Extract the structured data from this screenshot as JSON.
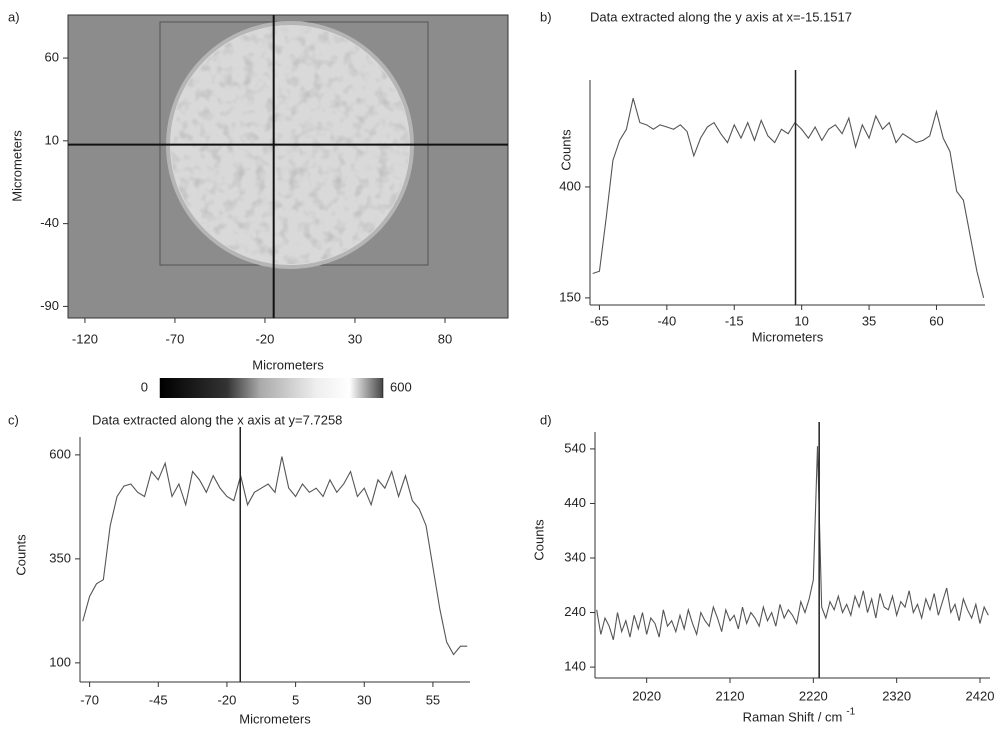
{
  "chart_data": [
    {
      "type": "image",
      "panel_label": "a)",
      "xlabel": "Micrometers",
      "ylabel": "Micrometers",
      "xlim": [
        -129.4,
        115
      ],
      "ylim": [
        -97,
        86
      ],
      "xticks": [
        -120,
        -70,
        -20,
        30,
        80
      ],
      "yticks": [
        60,
        10,
        -40,
        -90
      ],
      "crosshair": {
        "x": -15.1517,
        "y": 7.7258
      },
      "colorbar": {
        "range": [
          0,
          600
        ],
        "ticks": [
          0,
          600
        ]
      }
    },
    {
      "type": "line",
      "panel_label": "b)",
      "title": "Data extracted along the y axis at x=-15.1517",
      "xlabel": "Micrometers",
      "ylabel": "Counts",
      "color": "#555555",
      "xlim": [
        -68.5,
        78
      ],
      "ylim": [
        134,
        641
      ],
      "xticks": [
        -65,
        -40,
        -15,
        10,
        35,
        60
      ],
      "yticks": [
        150,
        400
      ],
      "marker_x": 7.7258,
      "x": [
        -67.5,
        -65,
        -62.5,
        -60,
        -57.5,
        -55,
        -52.5,
        -50,
        -47.5,
        -45,
        -42.5,
        -40,
        -37.5,
        -35,
        -32.5,
        -30,
        -27.5,
        -25,
        -22.5,
        -20,
        -17.5,
        -15,
        -12.5,
        -10,
        -7.5,
        -5,
        -2.5,
        0,
        2.5,
        5,
        7.5,
        10,
        12.5,
        15,
        17.5,
        20,
        22.5,
        25,
        27.5,
        30,
        32.5,
        35,
        37.5,
        40,
        42.5,
        45,
        47.5,
        50,
        52.5,
        55,
        57.5,
        60,
        62.5,
        65,
        67.5,
        70,
        72.5,
        75,
        77.5
      ],
      "values": [
        205,
        210,
        330,
        460,
        505,
        530,
        600,
        545,
        540,
        530,
        540,
        535,
        530,
        540,
        525,
        470,
        510,
        535,
        545,
        520,
        500,
        540,
        510,
        545,
        505,
        550,
        515,
        500,
        530,
        520,
        545,
        530,
        510,
        535,
        505,
        530,
        540,
        520,
        555,
        490,
        540,
        510,
        560,
        530,
        545,
        500,
        520,
        510,
        500,
        505,
        515,
        570,
        510,
        480,
        390,
        370,
        290,
        210,
        150
      ]
    },
    {
      "type": "line",
      "panel_label": "c)",
      "title": "Data extracted along the x axis at y=7.7258",
      "xlabel": "Micrometers",
      "ylabel": "Counts",
      "color": "#555555",
      "xlim": [
        -73.5,
        68.5
      ],
      "ylim": [
        54,
        643
      ],
      "xticks": [
        -70,
        -45,
        -20,
        5,
        30,
        55
      ],
      "yticks": [
        100,
        350,
        600
      ],
      "marker_x": -15.1517,
      "x": [
        -72.5,
        -70,
        -67.5,
        -65,
        -62.5,
        -60,
        -57.5,
        -55,
        -52.5,
        -50,
        -47.5,
        -45,
        -42.5,
        -40,
        -37.5,
        -35,
        -32.5,
        -30,
        -27.5,
        -25,
        -22.5,
        -20,
        -17.5,
        -15,
        -12.5,
        -10,
        -7.5,
        -5,
        -2.5,
        0,
        2.5,
        5,
        7.5,
        10,
        12.5,
        15,
        17.5,
        20,
        22.5,
        25,
        27.5,
        30,
        32.5,
        35,
        37.5,
        40,
        42.5,
        45,
        47.5,
        50,
        52.5,
        55,
        57.5,
        60,
        62.5,
        65,
        67.5
      ],
      "values": [
        200,
        260,
        290,
        300,
        430,
        500,
        525,
        530,
        510,
        500,
        560,
        540,
        580,
        500,
        530,
        480,
        560,
        540,
        510,
        550,
        520,
        500,
        490,
        550,
        480,
        510,
        520,
        530,
        510,
        596,
        520,
        500,
        530,
        510,
        520,
        500,
        540,
        510,
        530,
        560,
        500,
        520,
        480,
        540,
        520,
        560,
        500,
        550,
        490,
        470,
        430,
        330,
        230,
        150,
        120,
        140,
        140
      ]
    },
    {
      "type": "line",
      "panel_label": "d)",
      "xlabel": "Raman Shift / cm",
      "xlabel_superscript": "-1",
      "ylabel": "Counts",
      "color": "#555555",
      "xlim": [
        1958,
        2432
      ],
      "ylim": [
        120,
        571
      ],
      "xticks": [
        2020,
        2120,
        2220,
        2320,
        2420
      ],
      "yticks": [
        140,
        240,
        340,
        440,
        540
      ],
      "marker_x": 2227,
      "x": [
        1960,
        1965,
        1970,
        1975,
        1980,
        1985,
        1990,
        1995,
        2000,
        2005,
        2010,
        2015,
        2020,
        2025,
        2030,
        2035,
        2040,
        2045,
        2050,
        2055,
        2060,
        2065,
        2070,
        2075,
        2080,
        2085,
        2090,
        2095,
        2100,
        2105,
        2110,
        2115,
        2120,
        2125,
        2130,
        2135,
        2140,
        2145,
        2150,
        2155,
        2160,
        2165,
        2170,
        2175,
        2180,
        2185,
        2190,
        2195,
        2200,
        2205,
        2210,
        2215,
        2220,
        2225,
        2230,
        2235,
        2240,
        2245,
        2250,
        2255,
        2260,
        2265,
        2270,
        2275,
        2280,
        2285,
        2290,
        2295,
        2300,
        2305,
        2310,
        2315,
        2320,
        2325,
        2330,
        2335,
        2340,
        2345,
        2350,
        2355,
        2360,
        2365,
        2370,
        2375,
        2380,
        2385,
        2390,
        2395,
        2400,
        2405,
        2410,
        2415,
        2420,
        2425,
        2430
      ],
      "values": [
        245,
        200,
        230,
        215,
        190,
        240,
        205,
        225,
        195,
        235,
        210,
        240,
        200,
        230,
        220,
        195,
        245,
        215,
        225,
        205,
        235,
        210,
        245,
        220,
        200,
        240,
        225,
        215,
        250,
        230,
        205,
        245,
        225,
        235,
        210,
        250,
        220,
        240,
        230,
        215,
        250,
        225,
        240,
        215,
        255,
        230,
        245,
        235,
        220,
        260,
        240,
        265,
        300,
        545,
        250,
        230,
        260,
        245,
        270,
        240,
        255,
        235,
        270,
        250,
        280,
        240,
        265,
        230,
        275,
        250,
        245,
        270,
        235,
        260,
        250,
        280,
        240,
        255,
        230,
        265,
        245,
        275,
        235,
        260,
        285,
        240,
        255,
        225,
        265,
        245,
        230,
        255,
        220,
        250,
        235
      ]
    }
  ]
}
